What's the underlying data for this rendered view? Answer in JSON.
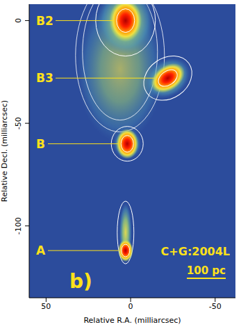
{
  "chart_data": {
    "type": "scatter",
    "x_label": "Relative R.A. (milliarcsec)",
    "y_label": "Relative Decl. (milliarcsec)",
    "xlim": [
      60,
      -62
    ],
    "xticks": [
      50,
      0,
      -50
    ],
    "ylim": [
      -135,
      8
    ],
    "yticks": [
      0,
      -50,
      -100
    ],
    "grid": false,
    "tick_labels": true,
    "labels": [
      "B2",
      "B3",
      "B",
      "A"
    ],
    "x": [
      3,
      -22,
      2,
      3
    ],
    "values": [
      0,
      -28,
      -60,
      -112
    ],
    "color": "#e00000",
    "annotations": [
      "C+G:2004L",
      "100 pc",
      "b)"
    ]
  }
}
